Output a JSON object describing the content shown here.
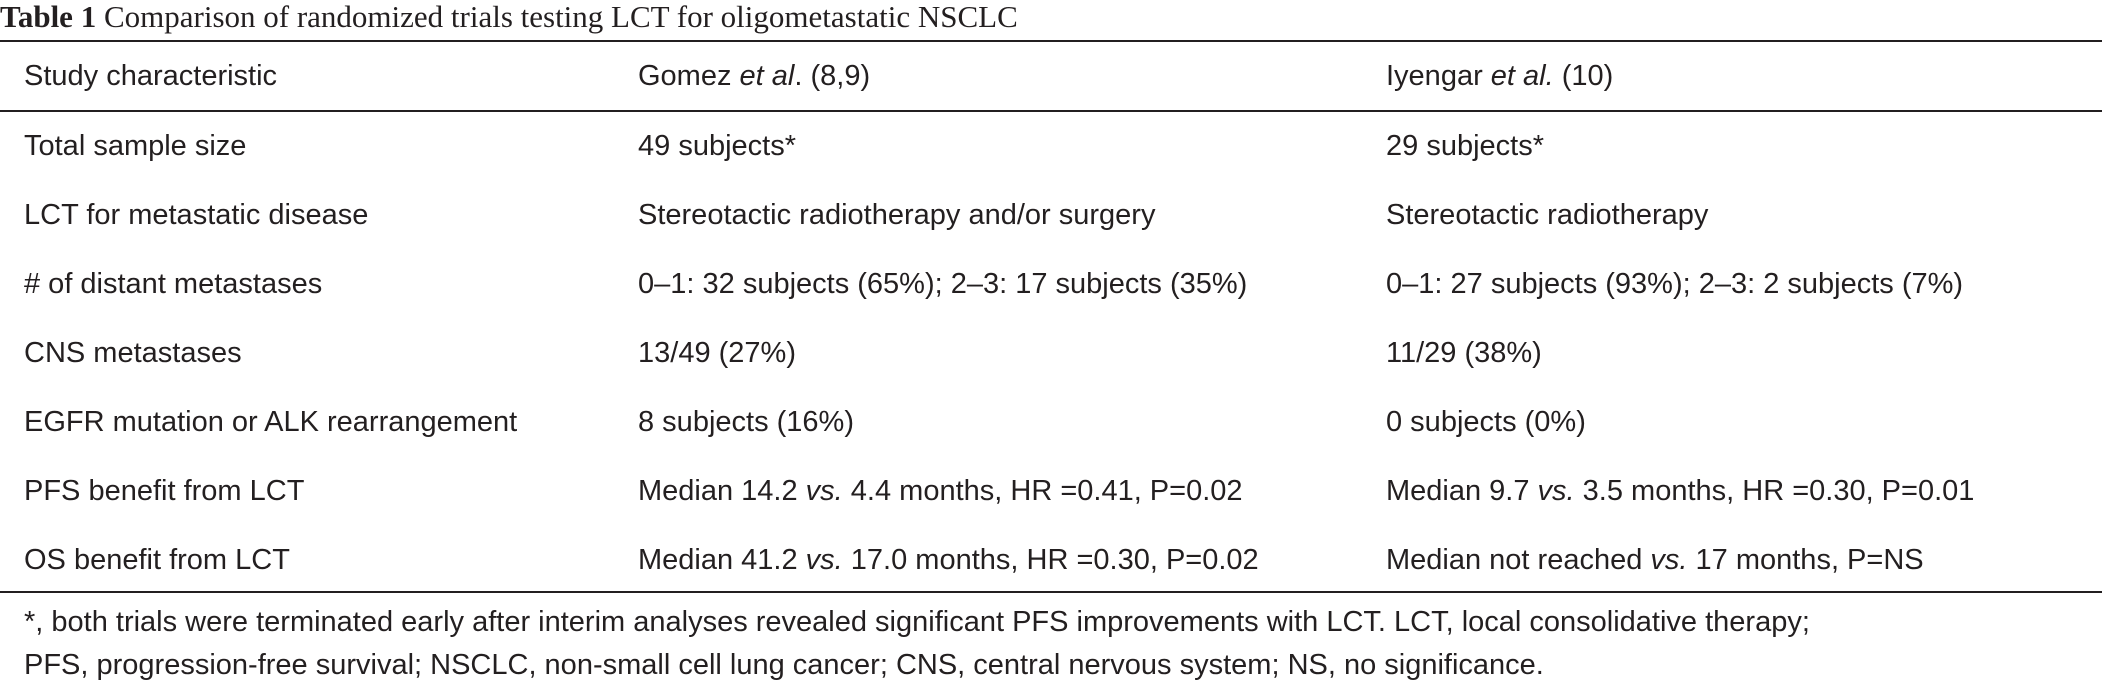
{
  "caption": {
    "label": "Table 1",
    "text": "Comparison of randomized trials testing LCT for oligometastatic NSCLC"
  },
  "header": {
    "col1": "Study characteristic",
    "col2_pre": "Gomez ",
    "col2_em": "et al",
    "col2_post": ". (8,9)",
    "col3_pre": "Iyengar ",
    "col3_em": "et al.",
    "col3_post": " (10)"
  },
  "rows": [
    {
      "characteristic": "Total sample size",
      "gomez": "49 subjects*",
      "iyengar": "29 subjects*"
    },
    {
      "characteristic": "LCT for metastatic disease",
      "gomez": "Stereotactic radiotherapy and/or surgery",
      "iyengar": "Stereotactic radiotherapy"
    },
    {
      "characteristic": "# of distant metastases",
      "gomez": "0–1: 32 subjects (65%); 2–3: 17 subjects (35%)",
      "iyengar": "0–1: 27 subjects (93%); 2–3: 2 subjects (7%)"
    },
    {
      "characteristic": "CNS metastases",
      "gomez": "13/49 (27%)",
      "iyengar": "11/29 (38%)"
    },
    {
      "characteristic": "EGFR mutation or ALK rearrangement",
      "gomez": "8 subjects (16%)",
      "iyengar": "0 subjects (0%)"
    },
    {
      "characteristic": "PFS benefit from LCT",
      "gomez_pre": "Median 14.2 ",
      "gomez_em": "vs.",
      "gomez_post": " 4.4 months, HR =0.41, P=0.02",
      "iyengar_pre": "Median 9.7 ",
      "iyengar_em": "vs.",
      "iyengar_post": " 3.5 months, HR =0.30, P=0.01"
    },
    {
      "characteristic": "OS benefit from LCT",
      "gomez_pre": "Median 41.2 ",
      "gomez_em": "vs.",
      "gomez_post": " 17.0 months, HR =0.30, P=0.02",
      "iyengar_pre": "Median not reached ",
      "iyengar_em": "vs.",
      "iyengar_post": " 17 months, P=NS"
    }
  ],
  "footnote": {
    "line1": "*, both trials were terminated early after interim analyses revealed significant PFS improvements with LCT. LCT, local consolidative therapy;",
    "line2": "PFS, progression-free survival; NSCLC, non-small cell lung cancer; CNS, central nervous system; NS, no significance."
  }
}
